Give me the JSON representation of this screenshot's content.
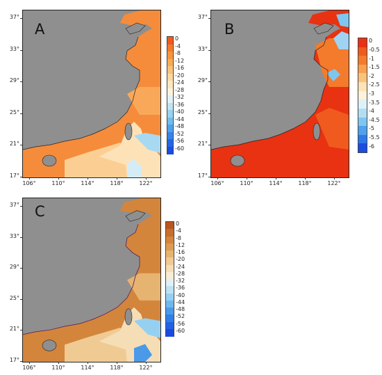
{
  "panels": [
    {
      "letter": "A",
      "colorbar_labels": [
        "0",
        "-4",
        "-8",
        "-12",
        "-16",
        "-20",
        "-24",
        "-28",
        "-32",
        "-36",
        "-40",
        "-44",
        "-48",
        "-52",
        "-56",
        "-60"
      ],
      "colorbar_colors": [
        "#f05a1e",
        "#f47a2c",
        "#f7953e",
        "#f9ac55",
        "#fbc27a",
        "#fcd7a0",
        "#fde7c0",
        "#fdf2dc",
        "#e2f1f7",
        "#c0e4f4",
        "#99d3f1",
        "#73bdee",
        "#4ea1ec",
        "#3584ea",
        "#2266e6",
        "#1a4de0"
      ]
    },
    {
      "letter": "B",
      "colorbar_labels": [
        "0",
        "-0.5",
        "-1",
        "-1.5",
        "-2",
        "-2.5",
        "-3",
        "-3.5",
        "-4",
        "-4.5",
        "-5",
        "-5.5",
        "-6"
      ],
      "colorbar_colors": [
        "#e83212",
        "#f05a1e",
        "#f47a2c",
        "#f9a050",
        "#fbc27a",
        "#fde3b8",
        "#fdf2dc",
        "#dff1f8",
        "#b2def3",
        "#7ec6f0",
        "#4ea1ec",
        "#2d78e8",
        "#1a4de0"
      ]
    },
    {
      "letter": "C",
      "colorbar_labels": [
        "0",
        "-4",
        "-8",
        "-12",
        "-16",
        "-20",
        "-24",
        "-28",
        "-32",
        "-36",
        "-40",
        "-44",
        "-48",
        "-52",
        "-56",
        "-60"
      ],
      "colorbar_colors": [
        "#b8561e",
        "#c86e2c",
        "#d4853c",
        "#dd9c52",
        "#e6b470",
        "#efcb93",
        "#f5deb6",
        "#f9ecd4",
        "#e0f0f6",
        "#bde2f3",
        "#96d0f0",
        "#6fb8ec",
        "#4a9ae9",
        "#327ee7",
        "#2262e4",
        "#1a4ade"
      ]
    }
  ],
  "y_ticks": [
    "37°",
    "33°",
    "29°",
    "25°",
    "21°",
    "17°"
  ],
  "x_ticks": [
    "106°",
    "110°",
    "114°",
    "118°",
    "122°"
  ]
}
